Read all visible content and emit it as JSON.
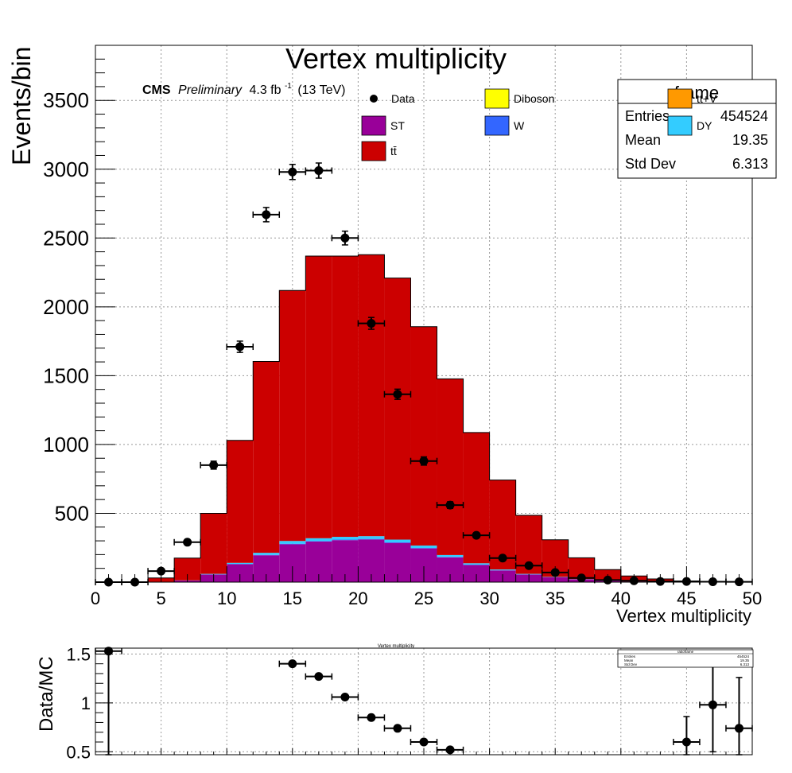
{
  "chart_data": [
    {
      "type": "bar",
      "title": "Vertex multiplicity",
      "cms_label": {
        "cms": "CMS",
        "preliminary": "Preliminary",
        "lumi": "4.3 fb",
        "lumi_exp": "-1",
        "energy": "(13 TeV)"
      },
      "xlabel": "Vertex multiplicity",
      "ylabel": "Events/bin",
      "xlim": [
        0,
        50
      ],
      "ylim": [
        0,
        3900
      ],
      "x_ticks": [
        "0",
        "5",
        "10",
        "15",
        "20",
        "25",
        "30",
        "35",
        "40",
        "45",
        "50"
      ],
      "y_ticks": [
        "500",
        "1000",
        "1500",
        "2000",
        "2500",
        "3000",
        "3500"
      ],
      "grid": true,
      "legend": [
        {
          "label": "Data",
          "kind": "marker",
          "color": "#000000"
        },
        {
          "label": "Diboson",
          "kind": "box",
          "color": "#ffff00"
        },
        {
          "label": "ST",
          "kind": "box",
          "color": "#990099"
        },
        {
          "label": "W",
          "kind": "box",
          "color": "#3366ff"
        },
        {
          "label": "tt̄",
          "kind": "box",
          "color": "#cc0000"
        },
        {
          "label": "tt+V",
          "kind": "box",
          "color": "#ff9900"
        },
        {
          "label": "DY",
          "kind": "box",
          "color": "#33ccff"
        }
      ],
      "stats_box": {
        "name": "frame",
        "rows": [
          {
            "label": "Entries",
            "value": "454524"
          },
          {
            "label": "Mean",
            "value": "19.35"
          },
          {
            "label": "Std Dev",
            "value": "6.313"
          }
        ]
      },
      "bin_edges": [
        0,
        2,
        4,
        6,
        8,
        10,
        12,
        14,
        16,
        18,
        20,
        22,
        24,
        26,
        28,
        30,
        32,
        34,
        36,
        38,
        40,
        42,
        44,
        46,
        48,
        50
      ],
      "series": [
        {
          "name": "Diboson",
          "color": "#ffff00",
          "values": [
            0,
            0,
            0,
            0,
            0,
            0,
            0,
            0,
            0,
            0,
            0,
            0,
            0,
            0,
            0,
            0,
            0,
            0,
            0,
            0,
            0,
            0,
            0,
            0,
            0
          ]
        },
        {
          "name": "ST",
          "color": "#990099",
          "values": [
            0,
            0,
            3,
            12,
            55,
            130,
            195,
            275,
            295,
            305,
            310,
            285,
            245,
            180,
            125,
            85,
            55,
            35,
            20,
            10,
            5,
            3,
            1,
            0,
            0
          ]
        },
        {
          "name": "W",
          "color": "#3366ff",
          "values": [
            0,
            0,
            0,
            0,
            1,
            2,
            3,
            4,
            4,
            4,
            4,
            4,
            3,
            3,
            2,
            1,
            1,
            0,
            0,
            0,
            0,
            0,
            0,
            0,
            0
          ]
        },
        {
          "name": "tt+V",
          "color": "#ff9900",
          "values": [
            0,
            0,
            0,
            0,
            0,
            0,
            0,
            0,
            0,
            0,
            0,
            0,
            0,
            0,
            0,
            0,
            0,
            0,
            0,
            0,
            0,
            0,
            0,
            0,
            0
          ]
        },
        {
          "name": "DY",
          "color": "#33ccff",
          "values": [
            0,
            0,
            0,
            1,
            4,
            8,
            15,
            20,
            20,
            20,
            20,
            20,
            18,
            14,
            10,
            6,
            4,
            3,
            2,
            1,
            0,
            0,
            0,
            0,
            0
          ]
        },
        {
          "name": "tt̄",
          "color": "#cc0000",
          "values": [
            0,
            0,
            27,
            162,
            440,
            890,
            1390,
            1820,
            2050,
            2040,
            2045,
            1900,
            1590,
            1280,
            950,
            650,
            425,
            270,
            155,
            80,
            40,
            20,
            8,
            3,
            1
          ]
        }
      ],
      "data_points": {
        "name": "Data",
        "x": [
          1,
          3,
          5,
          7,
          9,
          11,
          13,
          15,
          17,
          19,
          21,
          23,
          25,
          27,
          29,
          31,
          33,
          35,
          37,
          39,
          41,
          43,
          45,
          47,
          49
        ],
        "y": [
          0,
          0,
          80,
          290,
          850,
          1710,
          2670,
          2980,
          2990,
          2500,
          1880,
          1365,
          880,
          560,
          340,
          175,
          120,
          70,
          30,
          15,
          10,
          5,
          5,
          3,
          2
        ],
        "yerr": [
          0,
          0,
          9,
          17,
          29,
          41,
          52,
          55,
          55,
          50,
          43,
          37,
          30,
          24,
          18,
          13,
          11,
          8,
          5,
          4,
          3,
          2,
          2,
          2,
          1
        ],
        "xerr": 1
      }
    },
    {
      "type": "scatter",
      "title": "Vertex multiplicity",
      "ylabel": "Data/MC",
      "xlim": [
        0,
        50
      ],
      "ylim": [
        0.47,
        1.56
      ],
      "y_ticks": [
        "0.5",
        "1",
        "1.5"
      ],
      "grid": true,
      "stats_box": {
        "name": "ratioframe",
        "rows": [
          {
            "label": "Entries",
            "value": "454524"
          },
          {
            "label": "Mean",
            "value": "19.35"
          },
          {
            "label": "Std Dev",
            "value": "6.313"
          }
        ]
      },
      "x": [
        1,
        15,
        17,
        19,
        21,
        23,
        25,
        27,
        45,
        47,
        49
      ],
      "y": [
        1.53,
        1.4,
        1.27,
        1.06,
        0.85,
        0.74,
        0.6,
        0.52,
        0.6,
        0.98,
        0.74
      ],
      "yerr_low": [
        1.1,
        0.02,
        0.02,
        0.02,
        0.02,
        0.02,
        0.02,
        0.02,
        0.26,
        0.48,
        0.52
      ],
      "yerr_high": [
        1.1,
        0.02,
        0.02,
        0.02,
        0.02,
        0.02,
        0.02,
        0.02,
        0.26,
        0.5,
        0.52
      ],
      "xerr": 1
    }
  ]
}
